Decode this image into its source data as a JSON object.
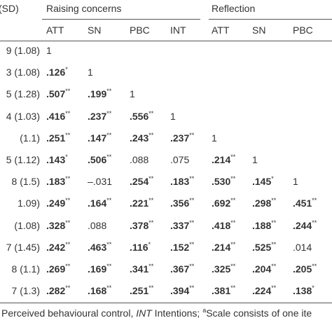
{
  "table": {
    "stub_header": "(SD)",
    "groups": [
      "Raising concerns",
      "Reflection"
    ],
    "columns": [
      "ATT",
      "SN",
      "PBC",
      "INT",
      "ATT",
      "SN",
      "PBC"
    ],
    "rows": [
      {
        "stub": "9 (1.08)",
        "cells": [
          {
            "text": "1"
          }
        ]
      },
      {
        "stub": "3 (1.08)",
        "cells": [
          {
            "text": ".126",
            "sup": "*"
          },
          {
            "text": "1"
          }
        ]
      },
      {
        "stub": "5 (1.28)",
        "cells": [
          {
            "text": ".507",
            "sup": "**"
          },
          {
            "text": ".199",
            "sup": "**"
          },
          {
            "text": "1"
          }
        ]
      },
      {
        "stub": "4 (1.03)",
        "cells": [
          {
            "text": ".416",
            "sup": "**"
          },
          {
            "text": ".237",
            "sup": "**"
          },
          {
            "text": ".556",
            "sup": "**"
          },
          {
            "text": "1"
          }
        ]
      },
      {
        "stub": "(1.1)",
        "cells": [
          {
            "text": ".251",
            "sup": "**"
          },
          {
            "text": ".147",
            "sup": "**"
          },
          {
            "text": ".243",
            "sup": "**"
          },
          {
            "text": ".237",
            "sup": "**"
          },
          {
            "text": "1"
          }
        ]
      },
      {
        "stub": "5 (1.12)",
        "cells": [
          {
            "text": ".143",
            "sup": "*"
          },
          {
            "text": ".506",
            "sup": "**"
          },
          {
            "text": ".088"
          },
          {
            "text": ".075"
          },
          {
            "text": ".214",
            "sup": "**"
          },
          {
            "text": "1"
          }
        ]
      },
      {
        "stub": "8 (1.5)",
        "cells": [
          {
            "text": ".183",
            "sup": "**"
          },
          {
            "text": "–.031"
          },
          {
            "text": ".254",
            "sup": "**"
          },
          {
            "text": ".183",
            "sup": "**"
          },
          {
            "text": ".530",
            "sup": "**"
          },
          {
            "text": ".145",
            "sup": "*"
          },
          {
            "text": "1"
          }
        ]
      },
      {
        "stub": "1.09)",
        "cells": [
          {
            "text": ".249",
            "sup": "**"
          },
          {
            "text": ".164",
            "sup": "**"
          },
          {
            "text": ".221",
            "sup": "**"
          },
          {
            "text": ".356",
            "sup": "**"
          },
          {
            "text": ".692",
            "sup": "**"
          },
          {
            "text": ".298",
            "sup": "**"
          },
          {
            "text": ".451",
            "sup": "**"
          }
        ]
      },
      {
        "stub": "(1.08)",
        "cells": [
          {
            "text": ".328",
            "sup": "**"
          },
          {
            "text": ".088"
          },
          {
            "text": ".378",
            "sup": "**"
          },
          {
            "text": ".337",
            "sup": "**"
          },
          {
            "text": ".418",
            "sup": "**"
          },
          {
            "text": ".188",
            "sup": "**"
          },
          {
            "text": ".244",
            "sup": "**"
          }
        ]
      },
      {
        "stub": "7 (1.45)",
        "cells": [
          {
            "text": ".242",
            "sup": "**"
          },
          {
            "text": ".463",
            "sup": "**"
          },
          {
            "text": ".116",
            "sup": "*"
          },
          {
            "text": ".152",
            "sup": "**"
          },
          {
            "text": ".214",
            "sup": "**"
          },
          {
            "text": ".525",
            "sup": "**"
          },
          {
            "text": ".014"
          }
        ]
      },
      {
        "stub": "8 (1.1)",
        "cells": [
          {
            "text": ".269",
            "sup": "**"
          },
          {
            "text": ".169",
            "sup": "**"
          },
          {
            "text": ".341",
            "sup": "**"
          },
          {
            "text": ".367",
            "sup": "**"
          },
          {
            "text": ".325",
            "sup": "**"
          },
          {
            "text": ".204",
            "sup": "**"
          },
          {
            "text": ".205",
            "sup": "**"
          }
        ]
      },
      {
        "stub": "7 (1.3)",
        "cells": [
          {
            "text": ".282",
            "sup": "**"
          },
          {
            "text": ".168",
            "sup": "**"
          },
          {
            "text": ".251",
            "sup": "**"
          },
          {
            "text": ".394",
            "sup": "**"
          },
          {
            "text": ".381",
            "sup": "**"
          },
          {
            "text": ".224",
            "sup": "**"
          },
          {
            "text": ".138",
            "sup": "*"
          }
        ]
      }
    ],
    "footnote": [
      "Perceived behavioural control, ",
      "INT",
      " Intentions; ",
      "a",
      "Scale consists of one ite"
    ]
  }
}
